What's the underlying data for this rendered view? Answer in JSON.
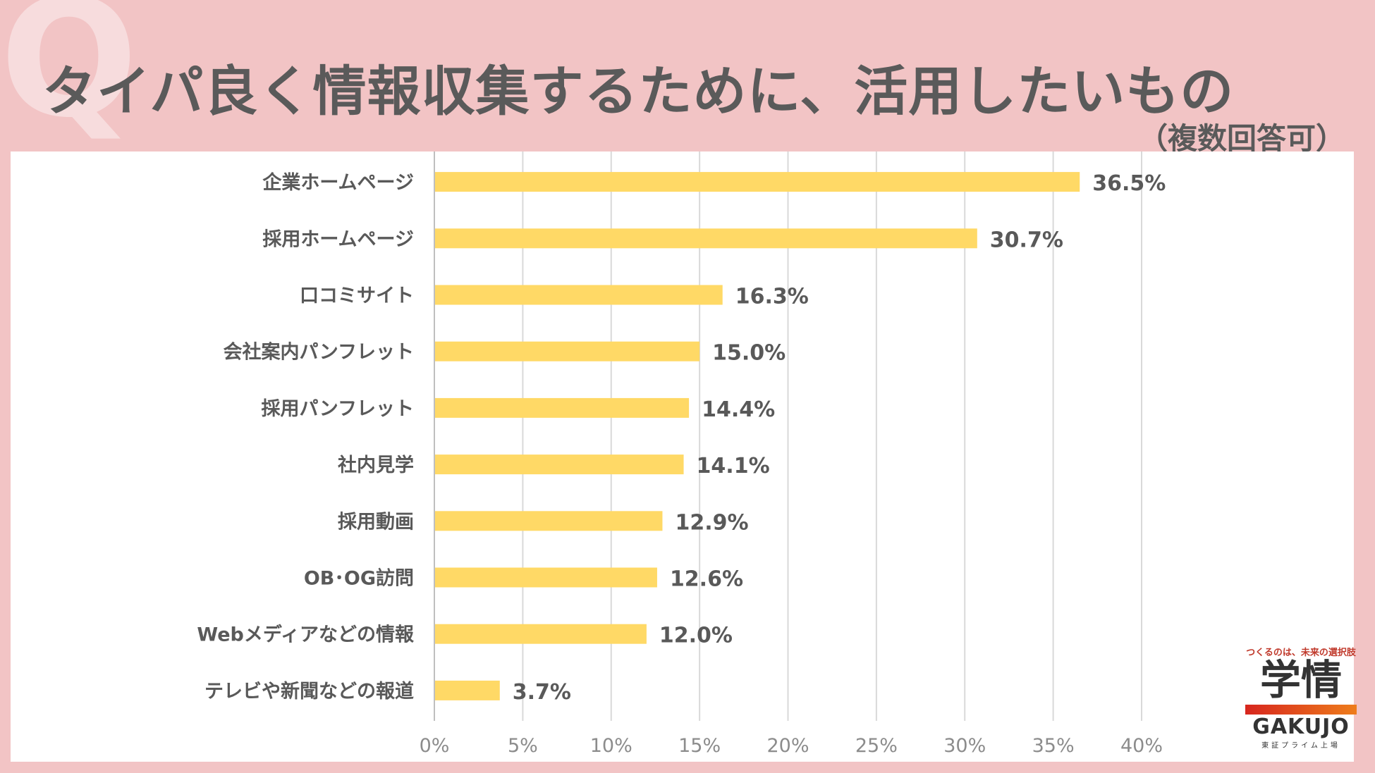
{
  "background_mark": "Q",
  "title": "タイパ良く情報収集するために、活用したいもの",
  "subtitle": "（複数回答可）",
  "colors": {
    "background": "#f2c4c5",
    "bar": "#ffd966",
    "grid": "#d9d9d9",
    "text": "#595959"
  },
  "chart_data": {
    "type": "bar",
    "orientation": "horizontal",
    "categories": [
      "企業ホームページ",
      "採用ホームページ",
      "口コミサイト",
      "会社案内パンフレット",
      "採用パンフレット",
      "社内見学",
      "採用動画",
      "OB･OG訪問",
      "Webメディアなどの情報",
      "テレビや新聞などの報道"
    ],
    "values": [
      36.5,
      30.7,
      16.3,
      15.0,
      14.4,
      14.1,
      12.9,
      12.6,
      12.0,
      3.7
    ],
    "value_labels": [
      "36.5%",
      "30.7%",
      "16.3%",
      "15.0%",
      "14.4%",
      "14.1%",
      "12.9%",
      "12.6%",
      "12.0%",
      "3.7%"
    ],
    "xlim": [
      0,
      40
    ],
    "xticks": [
      0,
      5,
      10,
      15,
      20,
      25,
      30,
      35,
      40
    ],
    "xtick_labels": [
      "0%",
      "5%",
      "10%",
      "15%",
      "20%",
      "25%",
      "30%",
      "35%",
      "40%"
    ],
    "grid": true
  },
  "logo": {
    "tagline": "つくるのは、未来の選択肢",
    "mark": "学情",
    "name": "GAKUJO",
    "sub": "東証プライム上場"
  }
}
